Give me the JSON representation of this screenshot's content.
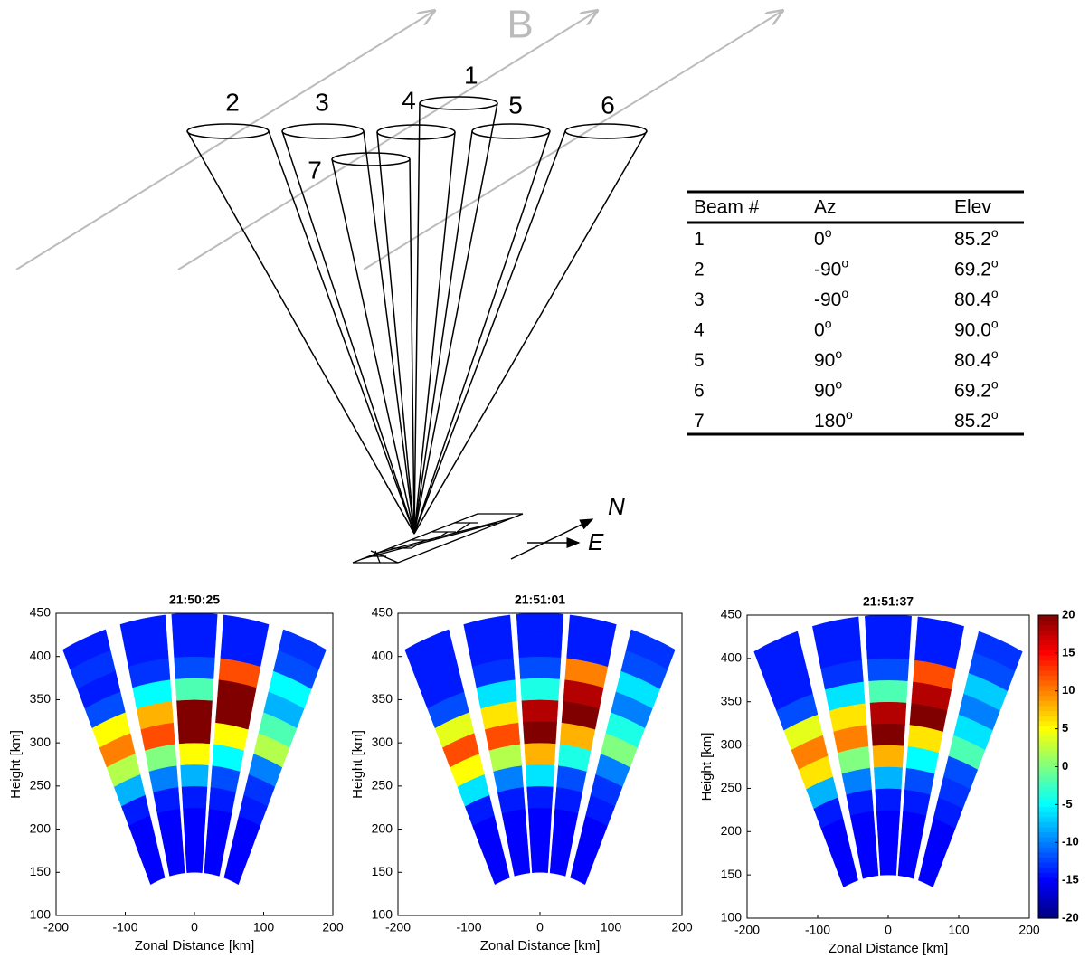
{
  "diagram": {
    "field_label": "B",
    "beam_labels": [
      "1",
      "2",
      "3",
      "4",
      "5",
      "6",
      "7"
    ],
    "north": "N",
    "east": "E"
  },
  "table": {
    "header": [
      "Beam #",
      "Az",
      "Elev"
    ],
    "degree_mark": "o",
    "rows": [
      [
        "1",
        "0",
        "85.2"
      ],
      [
        "2",
        "-90",
        "69.2"
      ],
      [
        "3",
        "-90",
        "80.4"
      ],
      [
        "4",
        "0",
        "90.0"
      ],
      [
        "5",
        "90",
        "80.4"
      ],
      [
        "6",
        "90",
        "69.2"
      ],
      [
        "7",
        "180",
        "85.2"
      ]
    ]
  },
  "chart_data": [
    {
      "type": "fan",
      "title": "21:50:25",
      "xlabel": "Zonal Distance [km]",
      "ylabel": "Height [km]",
      "xlim": [
        -200,
        200
      ],
      "ylim": [
        100,
        450
      ],
      "xticks": [
        -200,
        -100,
        0,
        100,
        200
      ],
      "yticks": [
        100,
        150,
        200,
        250,
        300,
        350,
        400,
        450
      ],
      "range_bins": [
        150,
        175,
        200,
        225,
        250,
        275,
        300,
        325,
        350,
        375,
        400,
        425,
        450
      ],
      "series": [
        {
          "values": [
            -15,
            -15,
            -15,
            -14,
            -8,
            2,
            10,
            5,
            -12,
            -14,
            -13,
            -14
          ]
        },
        {
          "values": [
            -15,
            -15,
            -15,
            -14,
            -10,
            0,
            12,
            8,
            -5,
            -13,
            -14,
            -14
          ]
        },
        {
          "values": [
            -15,
            -15,
            -15,
            -14,
            -8,
            5,
            20,
            20,
            -2,
            -12,
            -14,
            -14
          ]
        },
        {
          "values": [
            -15,
            -15,
            -15,
            -14,
            -12,
            -5,
            5,
            20,
            20,
            12,
            -14,
            -14
          ]
        },
        {
          "values": [
            -15,
            -15,
            -15,
            -14,
            -13,
            -10,
            2,
            -2,
            -8,
            -5,
            -12,
            -13
          ]
        }
      ]
    },
    {
      "type": "fan",
      "title": "21:51:01",
      "xlabel": "Zonal Distance [km]",
      "ylabel": "Height [km]",
      "xlim": [
        -200,
        200
      ],
      "ylim": [
        100,
        450
      ],
      "xticks": [
        -200,
        -100,
        0,
        100,
        200
      ],
      "yticks": [
        100,
        150,
        200,
        250,
        300,
        350,
        400,
        450
      ],
      "range_bins": [
        150,
        175,
        200,
        225,
        250,
        275,
        300,
        325,
        350,
        375,
        400,
        425,
        450
      ],
      "series": [
        {
          "values": [
            -15,
            -15,
            -15,
            -14,
            -6,
            5,
            12,
            4,
            -12,
            -14,
            -14,
            -14
          ]
        },
        {
          "values": [
            -15,
            -15,
            -15,
            -14,
            -10,
            2,
            12,
            6,
            -6,
            -13,
            -14,
            -14
          ]
        },
        {
          "values": [
            -15,
            -15,
            -15,
            -14,
            -6,
            8,
            20,
            18,
            -4,
            -12,
            -14,
            -14
          ]
        },
        {
          "values": [
            -15,
            -15,
            -15,
            -14,
            -12,
            -4,
            8,
            20,
            18,
            10,
            -14,
            -14
          ]
        },
        {
          "values": [
            -15,
            -15,
            -15,
            -14,
            -13,
            -10,
            0,
            -4,
            -10,
            -6,
            -12,
            -13
          ]
        }
      ]
    },
    {
      "type": "fan",
      "title": "21:51:37",
      "xlabel": "Zonal Distance [km]",
      "ylabel": "Height [km]",
      "xlim": [
        -200,
        200
      ],
      "ylim": [
        100,
        450
      ],
      "xticks": [
        -200,
        -100,
        0,
        100,
        200
      ],
      "yticks": [
        100,
        150,
        200,
        250,
        300,
        350,
        400,
        450
      ],
      "range_bins": [
        150,
        175,
        200,
        225,
        250,
        275,
        300,
        325,
        350,
        375,
        400,
        425,
        450
      ],
      "series": [
        {
          "values": [
            -15,
            -15,
            -15,
            -14,
            -8,
            6,
            10,
            4,
            -12,
            -14,
            -14,
            -14
          ]
        },
        {
          "values": [
            -15,
            -15,
            -15,
            -14,
            -10,
            0,
            10,
            6,
            -6,
            -13,
            -14,
            -14
          ]
        },
        {
          "values": [
            -15,
            -15,
            -15,
            -14,
            -8,
            8,
            20,
            18,
            -2,
            -12,
            -14,
            -14
          ]
        },
        {
          "values": [
            -15,
            -15,
            -15,
            -14,
            -12,
            -5,
            6,
            20,
            18,
            12,
            -14,
            -14
          ]
        },
        {
          "values": [
            -15,
            -15,
            -15,
            -14,
            -13,
            -12,
            -2,
            -6,
            -10,
            -7,
            -12,
            -13
          ]
        }
      ],
      "colorbar": {
        "clim": [
          -20,
          20
        ],
        "ticks": [
          -20,
          -15,
          -10,
          -5,
          0,
          5,
          10,
          15,
          20
        ]
      }
    }
  ]
}
